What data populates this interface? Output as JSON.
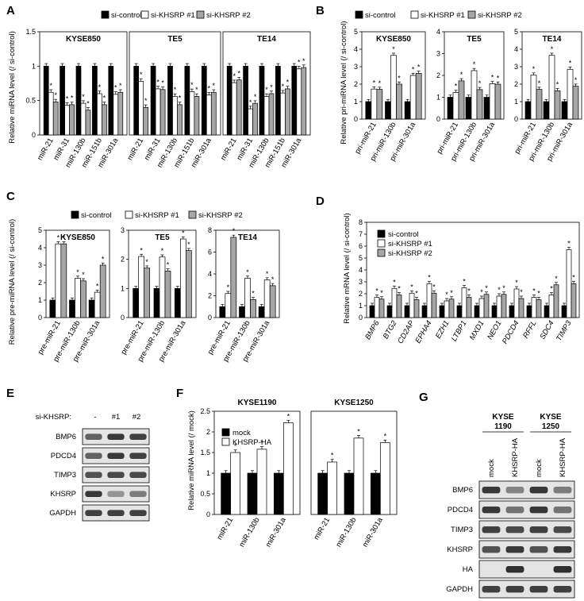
{
  "colors": {
    "control": "#000000",
    "kd1": "#ffffff",
    "kd2": "#a6a6a6",
    "mock": "#000000",
    "ha": "#ffffff"
  },
  "panelA": {
    "label": "A",
    "legend": [
      "si-control",
      "si-KHSRP #1",
      "si-KHSRP #2"
    ],
    "ylabel": "Relative miRNA level (/ si-control)",
    "ticks": [
      "0",
      "0.5",
      "1",
      "1.5"
    ],
    "ylim": [
      0,
      1.5
    ],
    "categories": [
      "miR-21",
      "miR-31",
      "miR-130b",
      "miR-151b",
      "miR-301a"
    ],
    "panels": [
      {
        "title": "KYSE850",
        "values": [
          [
            1,
            1,
            1,
            1,
            1
          ],
          [
            0.62,
            0.43,
            0.46,
            0.6,
            0.59
          ],
          [
            0.48,
            0.44,
            0.36,
            0.44,
            0.62
          ]
        ]
      },
      {
        "title": "TE5",
        "values": [
          [
            1,
            1,
            1,
            1,
            1
          ],
          [
            0.78,
            0.67,
            0.56,
            0.63,
            0.58
          ],
          [
            0.4,
            0.66,
            0.44,
            0.56,
            0.62
          ]
        ]
      },
      {
        "title": "TE14",
        "values": [
          [
            1,
            1,
            1,
            1,
            1
          ],
          [
            0.76,
            0.38,
            0.56,
            0.61,
            0.96
          ],
          [
            0.8,
            0.46,
            0.6,
            0.67,
            0.98
          ]
        ]
      }
    ]
  },
  "panelB": {
    "label": "B",
    "legend": [
      "si-control",
      "si-KHSRP #1",
      "si-KHSRP #2"
    ],
    "ylabel": "Relative pri-miRNA level (/ si-control)",
    "categories": [
      "pri-miR-21",
      "pri-miR-130b",
      "pri-miR-301a"
    ],
    "panels": [
      {
        "title": "KYSE850",
        "ticks": [
          "0",
          "1",
          "2",
          "3",
          "4",
          "5"
        ],
        "ylim": [
          0,
          5
        ],
        "values": [
          [
            1,
            1,
            1
          ],
          [
            1.72,
            3.65,
            2.5
          ],
          [
            1.7,
            2.0,
            2.62
          ]
        ]
      },
      {
        "title": "TE5",
        "ticks": [
          "0",
          "1",
          "2",
          "3",
          "4"
        ],
        "ylim": [
          0,
          4
        ],
        "values": [
          [
            1,
            1,
            1
          ],
          [
            1.22,
            2.22,
            1.62
          ],
          [
            1.75,
            1.35,
            1.6
          ]
        ]
      },
      {
        "title": "TE14",
        "ticks": [
          "0",
          "1",
          "2",
          "3",
          "4",
          "5"
        ],
        "ylim": [
          0,
          5
        ],
        "values": [
          [
            1,
            1,
            1
          ],
          [
            2.52,
            3.65,
            2.85
          ],
          [
            1.7,
            1.62,
            1.88
          ]
        ]
      }
    ]
  },
  "panelC": {
    "label": "C",
    "legend": [
      "si-control",
      "si-KHSRP #1",
      "si-KHSRP #2"
    ],
    "ylabel": "Relative pre-miRNA level (/ si-control)",
    "categories": [
      "pre-miR-21",
      "pre-miR-130b",
      "pre-miR-301a"
    ],
    "panels": [
      {
        "title": "KYSE850",
        "ticks": [
          "0",
          "1",
          "2",
          "3",
          "4",
          "5"
        ],
        "ylim": [
          0,
          5
        ],
        "values": [
          [
            1,
            1,
            1
          ],
          [
            4.22,
            2.25,
            1.45
          ],
          [
            4.22,
            2.1,
            3.0
          ]
        ]
      },
      {
        "title": "TE5",
        "ticks": [
          "0",
          "1",
          "2",
          "3"
        ],
        "ylim": [
          0,
          3
        ],
        "values": [
          [
            1,
            1,
            1
          ],
          [
            2.1,
            2.08,
            2.7
          ],
          [
            1.7,
            1.6,
            2.3
          ]
        ]
      },
      {
        "title": "TE14",
        "ticks": [
          "0",
          "2",
          "4",
          "6",
          "8"
        ],
        "ylim": [
          0,
          8
        ],
        "values": [
          [
            1,
            1,
            1
          ],
          [
            2.2,
            3.6,
            3.45
          ],
          [
            7.35,
            1.65,
            2.92
          ]
        ]
      }
    ]
  },
  "panelD": {
    "label": "D",
    "legend": [
      "si-control",
      "si-KHSRP #1",
      "si-KHSRP #2"
    ],
    "ylabel": "Relative mRNA level (/ si-control)",
    "ticks": [
      "0",
      "1",
      "2",
      "3",
      "4",
      "5",
      "6",
      "7",
      "8"
    ],
    "ylim": [
      0,
      8
    ],
    "categories": [
      "BMP6",
      "BTG2",
      "CD2AP",
      "EPHA4",
      "EZH1",
      "LTBP1",
      "MXD1",
      "NEO1",
      "PDCD4",
      "RFFL",
      "SDC4",
      "TIMP3"
    ],
    "values": [
      [
        1,
        1,
        1,
        1,
        1,
        1,
        1,
        1,
        1,
        1,
        1,
        1
      ],
      [
        1.7,
        2.45,
        2.05,
        2.85,
        1.4,
        2.5,
        1.6,
        1.8,
        2.4,
        1.7,
        1.9,
        5.7
      ],
      [
        1.55,
        1.9,
        1.5,
        2.05,
        1.55,
        1.7,
        1.95,
        1.95,
        1.6,
        1.5,
        2.75,
        2.85
      ]
    ]
  },
  "panelE": {
    "label": "E",
    "header": "si-KHSRP:",
    "lanes": [
      "-",
      "#1",
      "#2"
    ],
    "rows": [
      {
        "name": "BMP6",
        "levels": [
          0.6,
          0.85,
          0.8
        ]
      },
      {
        "name": "PDCD4",
        "levels": [
          0.6,
          0.85,
          0.8
        ]
      },
      {
        "name": "TIMP3",
        "levels": [
          0.7,
          0.75,
          0.75
        ]
      },
      {
        "name": "KHSRP",
        "levels": [
          0.85,
          0.3,
          0.45
        ]
      },
      {
        "name": "GAPDH",
        "levels": [
          0.8,
          0.8,
          0.8
        ]
      }
    ]
  },
  "panelF": {
    "label": "F",
    "legend": [
      "mock",
      "KHSRP-HA"
    ],
    "ylabel": "Relative miRNA level (/ mock)",
    "ticks": [
      "0",
      "0.5",
      "1",
      "1.5",
      "2",
      "2.5"
    ],
    "ylim": [
      0,
      2.5
    ],
    "categories": [
      "miR-21",
      "miR-130b",
      "miR-301a"
    ],
    "panels": [
      {
        "title": "KYSE1190",
        "values": [
          [
            1,
            1,
            1
          ],
          [
            1.5,
            1.58,
            2.22
          ]
        ]
      },
      {
        "title": "KYSE1250",
        "values": [
          [
            1,
            1,
            1
          ],
          [
            1.27,
            1.85,
            1.74
          ]
        ]
      }
    ]
  },
  "panelG": {
    "label": "G",
    "groups": [
      {
        "line1": "KYSE",
        "line2": "1190"
      },
      {
        "line1": "KYSE",
        "line2": "1250"
      }
    ],
    "lanes": [
      "mock",
      "KHSRP-HA",
      "mock",
      "KHSRP-HA"
    ],
    "rows": [
      {
        "name": "BMP6",
        "levels": [
          0.85,
          0.4,
          0.85,
          0.45
        ]
      },
      {
        "name": "PDCD4",
        "levels": [
          0.85,
          0.5,
          0.85,
          0.5
        ]
      },
      {
        "name": "TIMP3",
        "levels": [
          0.8,
          0.75,
          0.8,
          0.75
        ]
      },
      {
        "name": "KHSRP",
        "levels": [
          0.7,
          0.85,
          0.7,
          0.85
        ]
      },
      {
        "name": "HA",
        "levels": [
          0.0,
          0.9,
          0.0,
          0.9
        ]
      },
      {
        "name": "GAPDH",
        "levels": [
          0.8,
          0.8,
          0.8,
          0.8
        ]
      }
    ]
  }
}
